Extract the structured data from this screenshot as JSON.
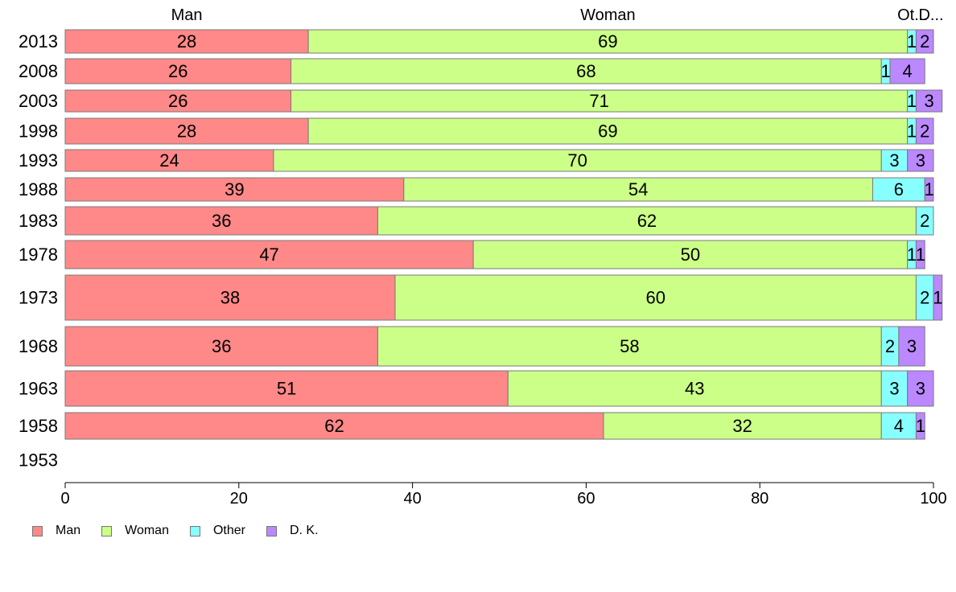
{
  "chart_data": {
    "type": "bar",
    "orientation": "horizontal",
    "stacked": true,
    "title": "",
    "xlabel": "",
    "ylabel": "",
    "xlim": [
      0,
      100
    ],
    "x_ticks": [
      0,
      20,
      40,
      60,
      80,
      100
    ],
    "grid": false,
    "legend_position": "bottom-left",
    "categories": [
      "2013",
      "2008",
      "2003",
      "1998",
      "1993",
      "1988",
      "1983",
      "1978",
      "1973",
      "1968",
      "1963",
      "1958",
      "1953"
    ],
    "top_labels": [
      "Man",
      "Woman",
      "Ot...",
      "D..."
    ],
    "series": [
      {
        "name": "Man",
        "color": "#ff8888",
        "values": [
          28,
          26,
          26,
          28,
          24,
          39,
          36,
          47,
          38,
          36,
          51,
          62,
          null
        ]
      },
      {
        "name": "Woman",
        "color": "#ccff88",
        "values": [
          69,
          68,
          71,
          69,
          70,
          54,
          62,
          50,
          60,
          58,
          43,
          32,
          null
        ]
      },
      {
        "name": "Other",
        "color": "#88ffff",
        "values": [
          1,
          1,
          1,
          1,
          3,
          6,
          2,
          1,
          2,
          2,
          3,
          4,
          null
        ]
      },
      {
        "name": "D. K.",
        "color": "#bb88ff",
        "values": [
          2,
          4,
          3,
          2,
          3,
          1,
          0,
          1,
          1,
          3,
          3,
          1,
          null
        ]
      }
    ]
  }
}
